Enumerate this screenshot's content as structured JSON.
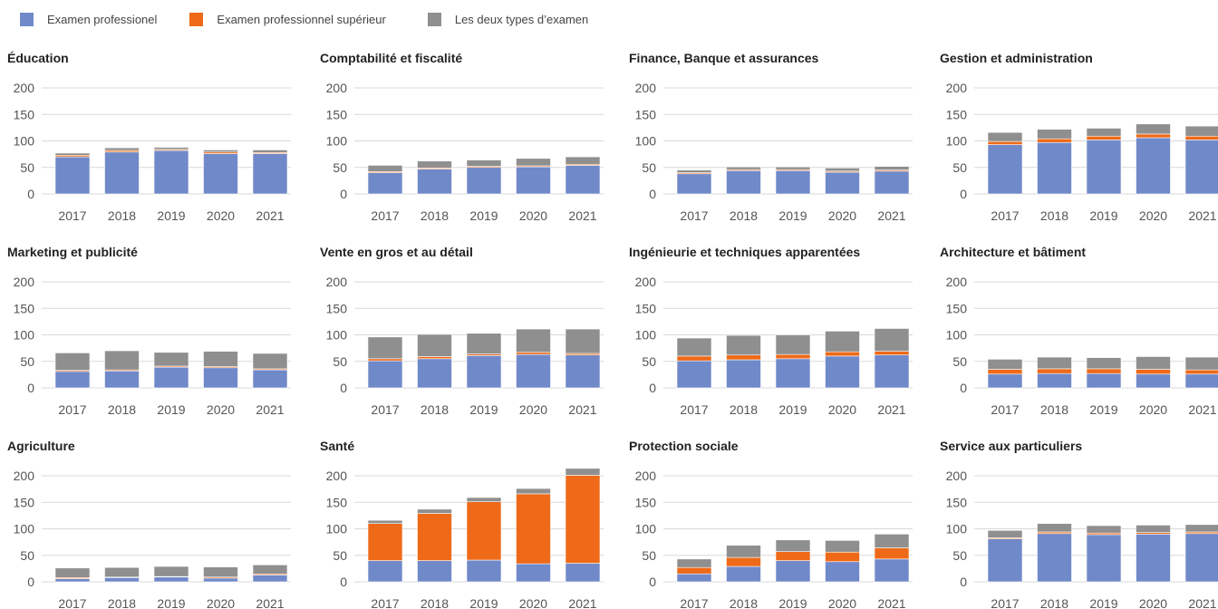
{
  "colors": {
    "examen_professionel": "#7089c9",
    "examen_professionnel_superieur": "#ee6a18",
    "les_deux_types": "#8f8f8f",
    "grid": "#d9d9d9",
    "separator": "#ffffff"
  },
  "legend": [
    {
      "label": "Examen professionel",
      "color": "#7089c9"
    },
    {
      "label": "Examen professionnel supérieur",
      "color": "#ee6a18"
    },
    {
      "label": "Les deux types d’examen",
      "color": "#8f8f8f"
    }
  ],
  "chart_data": [
    {
      "type": "bar",
      "stacked": true,
      "title": "Éducation",
      "categories": [
        "2017",
        "2018",
        "2019",
        "2020",
        "2021"
      ],
      "yticks": [
        "200",
        "150",
        "100",
        "50",
        "0"
      ],
      "ylim": [
        0,
        200
      ],
      "grid": true,
      "series": [
        {
          "name": "Examen professionel",
          "values": [
            70,
            79,
            82,
            76,
            76
          ]
        },
        {
          "name": "Examen professionnel supérieur",
          "values": [
            3,
            3,
            2,
            3,
            2
          ]
        },
        {
          "name": "Les deux types d’examen",
          "values": [
            4,
            5,
            4,
            4,
            5
          ]
        }
      ]
    },
    {
      "type": "bar",
      "stacked": true,
      "title": "Comptabilité et fiscalité",
      "categories": [
        "2017",
        "2018",
        "2019",
        "2020",
        "2021"
      ],
      "yticks": [
        "200",
        "150",
        "100",
        "50",
        "0"
      ],
      "ylim": [
        0,
        200
      ],
      "grid": true,
      "series": [
        {
          "name": "Examen professionel",
          "values": [
            40,
            47,
            50,
            51,
            54
          ]
        },
        {
          "name": "Examen professionnel supérieur",
          "values": [
            2,
            2,
            2,
            2,
            2
          ]
        },
        {
          "name": "Les deux types d’examen",
          "values": [
            12,
            13,
            12,
            14,
            14
          ]
        }
      ]
    },
    {
      "type": "bar",
      "stacked": true,
      "title": "Finance, Banque et assurances",
      "categories": [
        "2017",
        "2018",
        "2019",
        "2020",
        "2021"
      ],
      "yticks": [
        "200",
        "150",
        "100",
        "50",
        "0"
      ],
      "ylim": [
        0,
        200
      ],
      "grid": true,
      "series": [
        {
          "name": "Examen professionel",
          "values": [
            38,
            44,
            44,
            41,
            43
          ]
        },
        {
          "name": "Examen professionnel supérieur",
          "values": [
            2,
            2,
            2,
            2,
            2
          ]
        },
        {
          "name": "Les deux types d’examen",
          "values": [
            5,
            5,
            5,
            6,
            7
          ]
        }
      ]
    },
    {
      "type": "bar",
      "stacked": true,
      "title": "Gestion et administration",
      "categories": [
        "2017",
        "2018",
        "2019",
        "2020",
        "2021"
      ],
      "yticks": [
        "200",
        "150",
        "100",
        "50",
        "0"
      ],
      "ylim": [
        0,
        200
      ],
      "grid": true,
      "series": [
        {
          "name": "Examen professionel",
          "values": [
            93,
            97,
            102,
            106,
            102
          ]
        },
        {
          "name": "Examen professionnel supérieur",
          "values": [
            6,
            7,
            7,
            7,
            7
          ]
        },
        {
          "name": "Les deux types d’examen",
          "values": [
            17,
            18,
            15,
            19,
            19
          ]
        }
      ]
    },
    {
      "type": "bar",
      "stacked": true,
      "title": "Marketing et publicité",
      "categories": [
        "2017",
        "2018",
        "2019",
        "2020",
        "2021"
      ],
      "yticks": [
        "200",
        "150",
        "100",
        "50",
        "0"
      ],
      "ylim": [
        0,
        200
      ],
      "grid": true,
      "series": [
        {
          "name": "Examen professionel",
          "values": [
            31,
            32,
            39,
            38,
            34
          ]
        },
        {
          "name": "Examen professionnel supérieur",
          "values": [
            2,
            2,
            2,
            2,
            2
          ]
        },
        {
          "name": "Les deux types d’examen",
          "values": [
            33,
            36,
            26,
            29,
            29
          ]
        }
      ]
    },
    {
      "type": "bar",
      "stacked": true,
      "title": "Vente en gros et au détail",
      "categories": [
        "2017",
        "2018",
        "2019",
        "2020",
        "2021"
      ],
      "yticks": [
        "200",
        "150",
        "100",
        "50",
        "0"
      ],
      "ylim": [
        0,
        200
      ],
      "grid": true,
      "series": [
        {
          "name": "Examen professionel",
          "values": [
            51,
            55,
            61,
            63,
            62
          ]
        },
        {
          "name": "Examen professionnel supérieur",
          "values": [
            4,
            4,
            3,
            4,
            3
          ]
        },
        {
          "name": "Les deux types d’examen",
          "values": [
            41,
            42,
            39,
            44,
            46
          ]
        }
      ]
    },
    {
      "type": "bar",
      "stacked": true,
      "title": "Ingénieurie et techniques apparentées",
      "categories": [
        "2017",
        "2018",
        "2019",
        "2020",
        "2021"
      ],
      "yticks": [
        "200",
        "150",
        "100",
        "50",
        "0"
      ],
      "ylim": [
        0,
        200
      ],
      "grid": true,
      "series": [
        {
          "name": "Examen professionel",
          "values": [
            51,
            53,
            55,
            60,
            62
          ]
        },
        {
          "name": "Examen professionnel supérieur",
          "values": [
            9,
            9,
            8,
            8,
            7
          ]
        },
        {
          "name": "Les deux types d’examen",
          "values": [
            34,
            37,
            37,
            39,
            43
          ]
        }
      ]
    },
    {
      "type": "bar",
      "stacked": true,
      "title": "Architecture et bâtiment",
      "categories": [
        "2017",
        "2018",
        "2019",
        "2020",
        "2021"
      ],
      "yticks": [
        "200",
        "150",
        "100",
        "50",
        "0"
      ],
      "ylim": [
        0,
        200
      ],
      "grid": true,
      "series": [
        {
          "name": "Examen professionel",
          "values": [
            26,
            27,
            27,
            26,
            26
          ]
        },
        {
          "name": "Examen professionnel supérieur",
          "values": [
            9,
            9,
            9,
            9,
            8
          ]
        },
        {
          "name": "Les deux types d’examen",
          "values": [
            19,
            22,
            21,
            24,
            24
          ]
        }
      ]
    },
    {
      "type": "bar",
      "stacked": true,
      "title": "Agriculture",
      "categories": [
        "2017",
        "2018",
        "2019",
        "2020",
        "2021"
      ],
      "yticks": [
        "200",
        "150",
        "100",
        "50",
        "0"
      ],
      "ylim": [
        0,
        200
      ],
      "grid": true,
      "series": [
        {
          "name": "Examen professionel",
          "values": [
            6,
            8,
            9,
            7,
            13
          ]
        },
        {
          "name": "Examen professionnel supérieur",
          "values": [
            2,
            1,
            1,
            2,
            2
          ]
        },
        {
          "name": "Les deux types d’examen",
          "values": [
            18,
            18,
            19,
            19,
            17
          ]
        }
      ]
    },
    {
      "type": "bar",
      "stacked": true,
      "title": "Santé",
      "categories": [
        "2017",
        "2018",
        "2019",
        "2020",
        "2021"
      ],
      "yticks": [
        "200",
        "150",
        "100",
        "50",
        "0"
      ],
      "ylim": [
        0,
        200
      ],
      "grid": true,
      "series": [
        {
          "name": "Examen professionel",
          "values": [
            40,
            40,
            41,
            34,
            35
          ]
        },
        {
          "name": "Examen professionnel supérieur",
          "values": [
            70,
            89,
            110,
            132,
            166
          ]
        },
        {
          "name": "Les deux types d’examen",
          "values": [
            6,
            8,
            8,
            10,
            13
          ]
        }
      ]
    },
    {
      "type": "bar",
      "stacked": true,
      "title": "Protection sociale",
      "categories": [
        "2017",
        "2018",
        "2019",
        "2020",
        "2021"
      ],
      "yticks": [
        "200",
        "150",
        "100",
        "50",
        "0"
      ],
      "ylim": [
        0,
        200
      ],
      "grid": true,
      "series": [
        {
          "name": "Examen professionel",
          "values": [
            15,
            29,
            40,
            38,
            43
          ]
        },
        {
          "name": "Examen professionnel supérieur",
          "values": [
            12,
            17,
            17,
            18,
            21
          ]
        },
        {
          "name": "Les deux types d’examen",
          "values": [
            16,
            23,
            22,
            22,
            26
          ]
        }
      ]
    },
    {
      "type": "bar",
      "stacked": true,
      "title": "Service aux particuliers",
      "categories": [
        "2017",
        "2018",
        "2019",
        "2020",
        "2021"
      ],
      "yticks": [
        "200",
        "150",
        "100",
        "50",
        "0"
      ],
      "ylim": [
        0,
        200
      ],
      "grid": true,
      "series": [
        {
          "name": "Examen professionel",
          "values": [
            81,
            91,
            89,
            90,
            91
          ]
        },
        {
          "name": "Examen professionnel supérieur",
          "values": [
            2,
            3,
            3,
            3,
            3
          ]
        },
        {
          "name": "Les deux types d’examen",
          "values": [
            14,
            16,
            14,
            14,
            14
          ]
        }
      ]
    }
  ]
}
